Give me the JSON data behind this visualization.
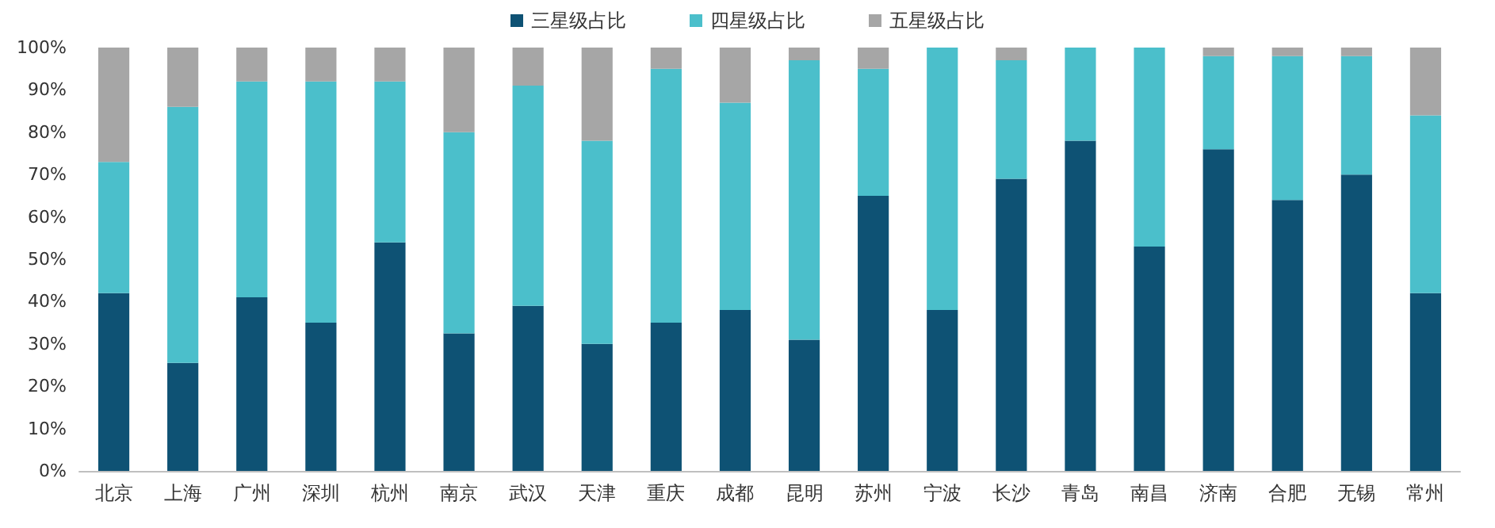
{
  "chart_data": {
    "type": "bar",
    "stacked": true,
    "categories": [
      "北京",
      "上海",
      "广州",
      "深圳",
      "杭州",
      "南京",
      "武汉",
      "天津",
      "重庆",
      "成都",
      "昆明",
      "苏州",
      "宁波",
      "长沙",
      "青岛",
      "南昌",
      "济南",
      "合肥",
      "无锡",
      "常州"
    ],
    "series": [
      {
        "name": "三星级占比",
        "color": "#0e5274",
        "values": [
          42,
          25.5,
          41,
          35,
          54,
          32.5,
          39,
          30,
          35,
          38,
          31,
          65,
          38,
          69,
          78,
          53,
          76,
          64,
          70,
          42
        ]
      },
      {
        "name": "四星级占比",
        "color": "#4bbfcb",
        "values": [
          31,
          60.5,
          51,
          57,
          38,
          47.5,
          52,
          48,
          60,
          49,
          66,
          30,
          62,
          28,
          22,
          47,
          22,
          34,
          28,
          42
        ]
      },
      {
        "name": "五星级占比",
        "color": "#a6a6a6",
        "values": [
          27,
          14,
          8,
          8,
          8,
          20,
          9,
          22,
          5,
          13,
          3,
          5,
          0,
          3,
          0,
          0,
          2,
          2,
          2,
          16
        ]
      }
    ],
    "ylim": [
      0,
      100
    ],
    "yticks": [
      {
        "value": 0,
        "label": "0%"
      },
      {
        "value": 10,
        "label": "10%"
      },
      {
        "value": 20,
        "label": "20%"
      },
      {
        "value": 30,
        "label": "30%"
      },
      {
        "value": 40,
        "label": "40%"
      },
      {
        "value": 50,
        "label": "50%"
      },
      {
        "value": 60,
        "label": "60%"
      },
      {
        "value": 70,
        "label": "70%"
      },
      {
        "value": 80,
        "label": "80%"
      },
      {
        "value": 90,
        "label": "90%"
      },
      {
        "value": 100,
        "label": "100%"
      }
    ],
    "grid": false,
    "legend": "top"
  }
}
